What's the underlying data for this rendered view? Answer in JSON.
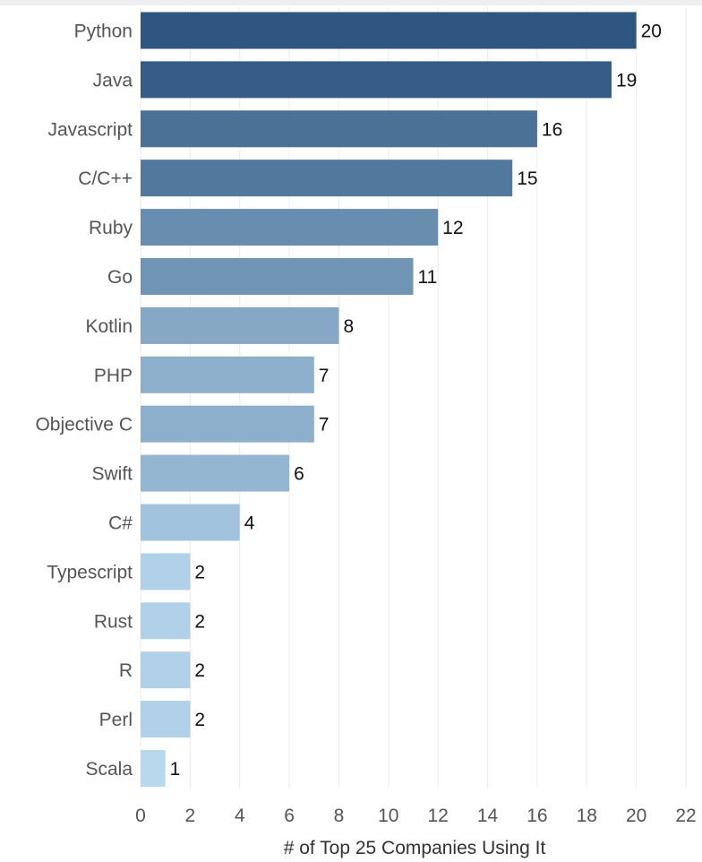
{
  "chart_data": {
    "type": "bar",
    "orientation": "horizontal",
    "title": "",
    "xlabel": "# of Top 25 Companies Using It",
    "ylabel": "",
    "xlim": [
      0,
      22
    ],
    "xticks": [
      0,
      2,
      4,
      6,
      8,
      10,
      12,
      14,
      16,
      18,
      20,
      22
    ],
    "grid": true,
    "categories": [
      "Python",
      "Java",
      "Javascript",
      "C/C++",
      "Ruby",
      "Go",
      "Kotlin",
      "PHP",
      "Objective C",
      "Swift",
      "C#",
      "Typescript",
      "Rust",
      "R",
      "Perl",
      "Scala"
    ],
    "values": [
      20,
      19,
      16,
      15,
      12,
      11,
      8,
      7,
      7,
      6,
      4,
      2,
      2,
      2,
      2,
      1
    ],
    "color_scale": {
      "low": "#b8d8ee",
      "high": "#2f5680"
    }
  }
}
